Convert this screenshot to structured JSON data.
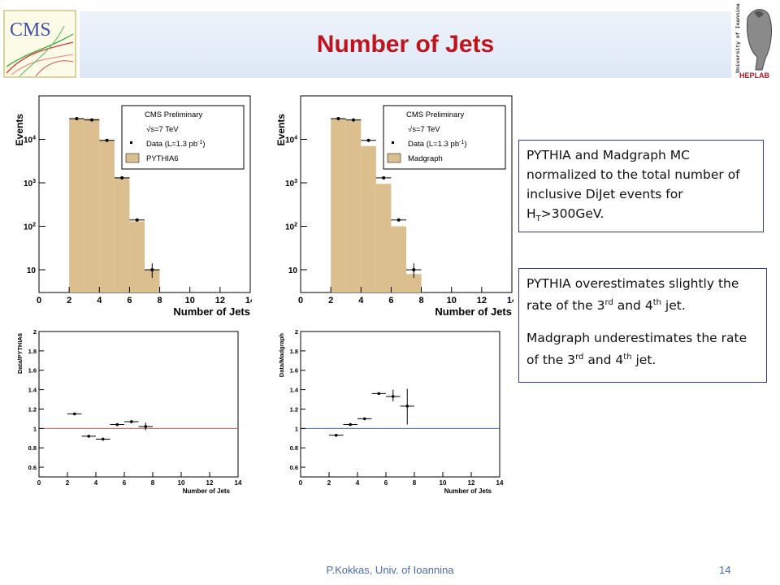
{
  "slide": {
    "title": "Number of Jets",
    "footer_author": "P.Kokkas, Univ. of Ioannina",
    "page_number": "14"
  },
  "logos": {
    "cms_text": "CMS",
    "heplab_text": "HEPLAB",
    "university_text": "University of Ioannina"
  },
  "notes": {
    "box1": {
      "line1": "PYTHIA and Madgraph MC normalized to the total number of inclusive DiJet events for H",
      "sub": "T",
      "line2": ">300GeV."
    },
    "box2": {
      "p1_a": "PYTHIA overestimates slightly the rate of the 3",
      "p1_sup1": "rd",
      "p1_b": "  and 4",
      "p1_sup2": "th",
      "p1_c": " jet.",
      "p2_a": "Madgraph underestimates the rate of the 3",
      "p2_sup1": "rd",
      "p2_b": "  and 4",
      "p2_sup2": "th",
      "p2_c": " jet."
    }
  },
  "colors": {
    "title": "#c0141c",
    "mc_fill": "#dcbf8f",
    "pythia_ratio_line": "#e84a4a",
    "madgraph_ratio_line": "#3a5fd0",
    "box_border": "#2b3f8c"
  },
  "chart_data": [
    {
      "type": "bar",
      "name": "pythia-distribution",
      "x_edges": [
        2,
        3,
        4,
        5,
        6,
        7,
        8
      ],
      "mc_values": [
        30000,
        30000,
        9500,
        1300,
        130,
        10
      ],
      "data_points": [
        {
          "x": 2.5,
          "y": 30000
        },
        {
          "x": 3.5,
          "y": 28000
        },
        {
          "x": 4.5,
          "y": 9500
        },
        {
          "x": 5.5,
          "y": 1300
        },
        {
          "x": 6.5,
          "y": 140
        },
        {
          "x": 7.5,
          "y": 10,
          "err": [
            6.5,
            14
          ]
        }
      ],
      "xlabel": "Number of Jets",
      "ylabel": "Events",
      "xlim": [
        0,
        14
      ],
      "ylim": [
        3,
        100000
      ],
      "log_y": true,
      "xticks": [
        "0",
        "2",
        "4",
        "6",
        "8",
        "10",
        "12",
        "14"
      ],
      "yticks": [
        {
          "value": 10,
          "label": "10",
          "sup": ""
        },
        {
          "value": 100,
          "label": "10",
          "sup": "2"
        },
        {
          "value": 1000,
          "label": "10",
          "sup": "3"
        },
        {
          "value": 10000,
          "label": "10",
          "sup": "4"
        }
      ],
      "legend": {
        "placement": "top-right",
        "title": "CMS Preliminary",
        "energy": "√s=7 TeV",
        "data_label": "Data (L=1.3 pb",
        "data_label_sup": "-1",
        "data_label_end": ")",
        "mc_label": "PYTHIA6"
      }
    },
    {
      "type": "bar",
      "name": "madgraph-distribution",
      "x_edges": [
        2,
        3,
        4,
        5,
        6,
        7,
        8
      ],
      "mc_values": [
        30000,
        28000,
        7000,
        950,
        100,
        8
      ],
      "data_points": [
        {
          "x": 2.5,
          "y": 30000
        },
        {
          "x": 3.5,
          "y": 28000
        },
        {
          "x": 4.5,
          "y": 9500
        },
        {
          "x": 5.5,
          "y": 1300
        },
        {
          "x": 6.5,
          "y": 140
        },
        {
          "x": 7.5,
          "y": 10,
          "err": [
            6.5,
            14
          ]
        }
      ],
      "xlabel": "Number of Jets",
      "ylabel": "Events",
      "xlim": [
        0,
        14
      ],
      "ylim": [
        3,
        100000
      ],
      "log_y": true,
      "xticks": [
        "0",
        "2",
        "4",
        "6",
        "8",
        "10",
        "12",
        "14"
      ],
      "yticks": [
        {
          "value": 10,
          "label": "10",
          "sup": ""
        },
        {
          "value": 100,
          "label": "10",
          "sup": "2"
        },
        {
          "value": 1000,
          "label": "10",
          "sup": "3"
        },
        {
          "value": 10000,
          "label": "10",
          "sup": "4"
        }
      ],
      "legend": {
        "placement": "top-right",
        "title": "CMS Preliminary",
        "energy": "√s=7 TeV",
        "data_label": "Data (L=1.3 pb",
        "data_label_sup": "-1",
        "data_label_end": ")",
        "mc_label": "Madgraph"
      }
    },
    {
      "type": "scatter",
      "name": "pythia-ratio",
      "points": [
        {
          "x": 2.5,
          "y": 1.15
        },
        {
          "x": 3.5,
          "y": 0.92
        },
        {
          "x": 4.5,
          "y": 0.89
        },
        {
          "x": 5.5,
          "y": 1.04
        },
        {
          "x": 6.5,
          "y": 1.07
        },
        {
          "x": 7.5,
          "y": 1.02,
          "err": [
            0.98,
            1.06
          ]
        }
      ],
      "reference_line": 1,
      "xlabel": "Number of Jets",
      "ylabel": "Data/PYTHIA6",
      "xlim": [
        0,
        14
      ],
      "ylim": [
        0.5,
        2
      ],
      "xticks": [
        "0",
        "2",
        "4",
        "6",
        "8",
        "10",
        "12",
        "14"
      ],
      "yticks": [
        "0.6",
        "0.8",
        "1",
        "1.2",
        "1.4",
        "1.6",
        "1.8",
        "2"
      ]
    },
    {
      "type": "scatter",
      "name": "madgraph-ratio",
      "points": [
        {
          "x": 2.5,
          "y": 0.93
        },
        {
          "x": 3.5,
          "y": 1.04
        },
        {
          "x": 4.5,
          "y": 1.1
        },
        {
          "x": 5.5,
          "y": 1.36
        },
        {
          "x": 6.5,
          "y": 1.33,
          "err": [
            1.28,
            1.4
          ]
        },
        {
          "x": 7.5,
          "y": 1.23,
          "err": [
            1.04,
            1.41
          ]
        }
      ],
      "reference_line": 1,
      "xlabel": "Number of Jets",
      "ylabel": "Data/Madgraph",
      "xlim": [
        0,
        14
      ],
      "ylim": [
        0.5,
        2
      ],
      "xticks": [
        "0",
        "2",
        "4",
        "6",
        "8",
        "10",
        "12",
        "14"
      ],
      "yticks": [
        "0.6",
        "0.8",
        "1",
        "1.2",
        "1.4",
        "1.6",
        "1.8",
        "2"
      ]
    }
  ]
}
